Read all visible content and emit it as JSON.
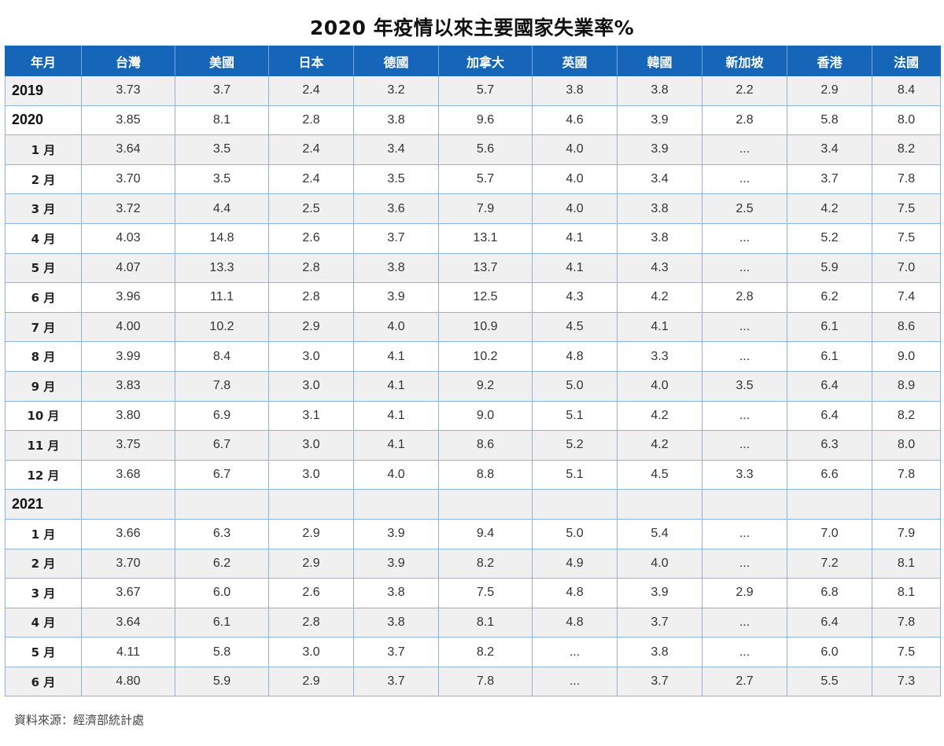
{
  "title": "2020 年疫情以來主要國家失業率%",
  "source": "資料來源：經濟部統計處",
  "colors": {
    "header_bg": "#1565b8",
    "header_text": "#ffffff",
    "row_alt_bg": "#f0f0f0",
    "grid": "#8fb4db"
  },
  "chart_data": {
    "type": "table",
    "title": "2020 年疫情以來主要國家失業率%",
    "columns": [
      "年月",
      "台灣",
      "美國",
      "日本",
      "德國",
      "加拿大",
      "英國",
      "韓國",
      "新加坡",
      "香港",
      "法國"
    ],
    "rows": [
      {
        "kind": "year",
        "label": "2019",
        "values": [
          "3.73",
          "3.7",
          "2.4",
          "3.2",
          "5.7",
          "3.8",
          "3.8",
          "2.2",
          "2.9",
          "8.4"
        ]
      },
      {
        "kind": "year",
        "label": "2020",
        "values": [
          "3.85",
          "8.1",
          "2.8",
          "3.8",
          "9.6",
          "4.6",
          "3.9",
          "2.8",
          "5.8",
          "8.0"
        ]
      },
      {
        "kind": "month",
        "label": "1 月",
        "values": [
          "3.64",
          "3.5",
          "2.4",
          "3.4",
          "5.6",
          "4.0",
          "3.9",
          "...",
          "3.4",
          "8.2"
        ]
      },
      {
        "kind": "month",
        "label": "2 月",
        "values": [
          "3.70",
          "3.5",
          "2.4",
          "3.5",
          "5.7",
          "4.0",
          "3.4",
          "...",
          "3.7",
          "7.8"
        ]
      },
      {
        "kind": "month",
        "label": "3 月",
        "values": [
          "3.72",
          "4.4",
          "2.5",
          "3.6",
          "7.9",
          "4.0",
          "3.8",
          "2.5",
          "4.2",
          "7.5"
        ]
      },
      {
        "kind": "month",
        "label": "4 月",
        "values": [
          "4.03",
          "14.8",
          "2.6",
          "3.7",
          "13.1",
          "4.1",
          "3.8",
          "...",
          "5.2",
          "7.5"
        ]
      },
      {
        "kind": "month",
        "label": "5 月",
        "values": [
          "4.07",
          "13.3",
          "2.8",
          "3.8",
          "13.7",
          "4.1",
          "4.3",
          "...",
          "5.9",
          "7.0"
        ]
      },
      {
        "kind": "month",
        "label": "6 月",
        "values": [
          "3.96",
          "11.1",
          "2.8",
          "3.9",
          "12.5",
          "4.3",
          "4.2",
          "2.8",
          "6.2",
          "7.4"
        ]
      },
      {
        "kind": "month",
        "label": "7 月",
        "values": [
          "4.00",
          "10.2",
          "2.9",
          "4.0",
          "10.9",
          "4.5",
          "4.1",
          "...",
          "6.1",
          "8.6"
        ]
      },
      {
        "kind": "month",
        "label": "8 月",
        "values": [
          "3.99",
          "8.4",
          "3.0",
          "4.1",
          "10.2",
          "4.8",
          "3.3",
          "...",
          "6.1",
          "9.0"
        ]
      },
      {
        "kind": "month",
        "label": "9 月",
        "values": [
          "3.83",
          "7.8",
          "3.0",
          "4.1",
          "9.2",
          "5.0",
          "4.0",
          "3.5",
          "6.4",
          "8.9"
        ]
      },
      {
        "kind": "month",
        "label": "10 月",
        "values": [
          "3.80",
          "6.9",
          "3.1",
          "4.1",
          "9.0",
          "5.1",
          "4.2",
          "...",
          "6.4",
          "8.2"
        ]
      },
      {
        "kind": "month",
        "label": "11 月",
        "values": [
          "3.75",
          "6.7",
          "3.0",
          "4.1",
          "8.6",
          "5.2",
          "4.2",
          "...",
          "6.3",
          "8.0"
        ]
      },
      {
        "kind": "month",
        "label": "12 月",
        "values": [
          "3.68",
          "6.7",
          "3.0",
          "4.0",
          "8.8",
          "5.1",
          "4.5",
          "3.3",
          "6.6",
          "7.8"
        ]
      },
      {
        "kind": "year",
        "label": "2021",
        "values": [
          "",
          "",
          "",
          "",
          "",
          "",
          "",
          "",
          "",
          ""
        ]
      },
      {
        "kind": "month",
        "label": "1 月",
        "values": [
          "3.66",
          "6.3",
          "2.9",
          "3.9",
          "9.4",
          "5.0",
          "5.4",
          "...",
          "7.0",
          "7.9"
        ]
      },
      {
        "kind": "month",
        "label": "2 月",
        "values": [
          "3.70",
          "6.2",
          "2.9",
          "3.9",
          "8.2",
          "4.9",
          "4.0",
          "...",
          "7.2",
          "8.1"
        ]
      },
      {
        "kind": "month",
        "label": "3 月",
        "values": [
          "3.67",
          "6.0",
          "2.6",
          "3.8",
          "7.5",
          "4.8",
          "3.9",
          "2.9",
          "6.8",
          "8.1"
        ]
      },
      {
        "kind": "month",
        "label": "4 月",
        "values": [
          "3.64",
          "6.1",
          "2.8",
          "3.8",
          "8.1",
          "4.8",
          "3.7",
          "...",
          "6.4",
          "7.8"
        ]
      },
      {
        "kind": "month",
        "label": "5 月",
        "values": [
          "4.11",
          "5.8",
          "3.0",
          "3.7",
          "8.2",
          "...",
          "3.8",
          "...",
          "6.0",
          "7.5"
        ]
      },
      {
        "kind": "month",
        "label": "6 月",
        "values": [
          "4.80",
          "5.9",
          "2.9",
          "3.7",
          "7.8",
          "...",
          "3.7",
          "2.7",
          "5.5",
          "7.3"
        ]
      }
    ]
  }
}
